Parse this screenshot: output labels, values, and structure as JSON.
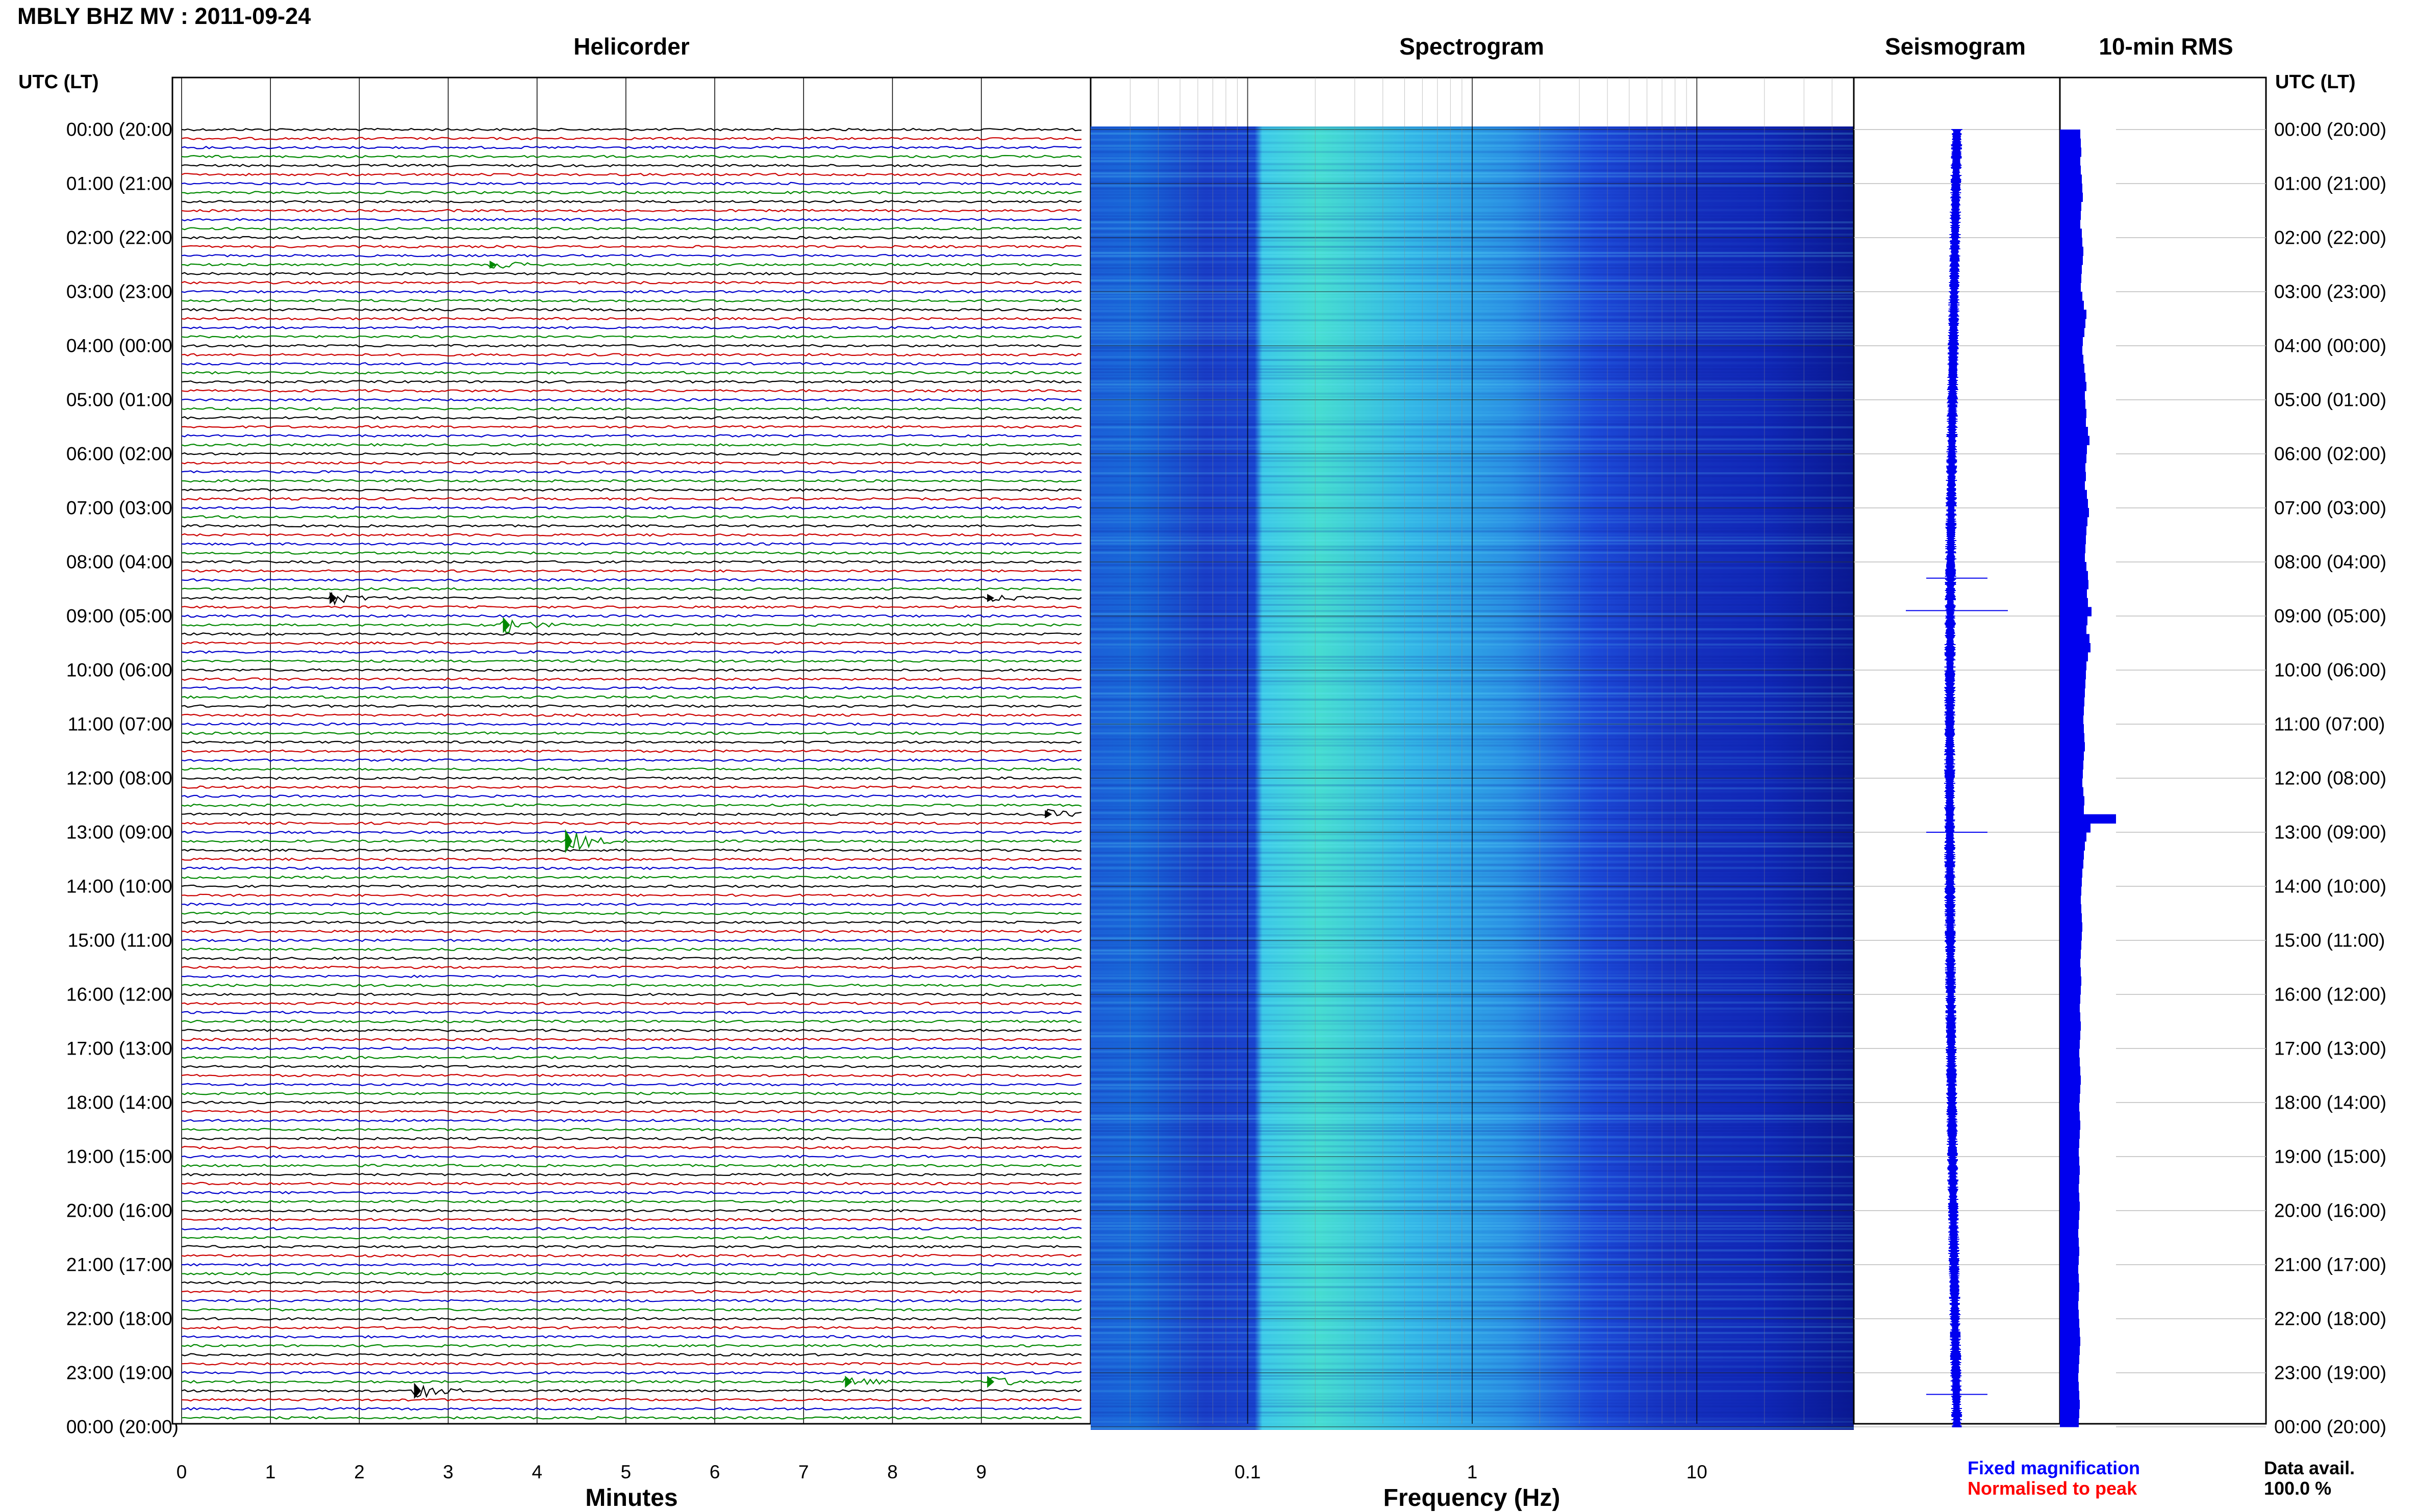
{
  "header": {
    "title": "MBLY BHZ MV : 2011-09-24"
  },
  "panels": {
    "helicorder": "Helicorder",
    "spectrogram": "Spectrogram",
    "seismogram": "Seismogram",
    "rms": "10-min RMS"
  },
  "axes": {
    "left_label": "UTC (LT)",
    "right_label": "UTC (LT)",
    "minutes_title": "Minutes",
    "frequency_title": "Frequency (Hz)",
    "minute_ticks": [
      "0",
      "1",
      "2",
      "3",
      "4",
      "5",
      "6",
      "7",
      "8",
      "9"
    ],
    "frequency_ticks": [
      "0.1",
      "1",
      "10"
    ]
  },
  "time_labels": [
    "00:00 (20:00)",
    "01:00 (21:00)",
    "02:00 (22:00)",
    "03:00 (23:00)",
    "04:00 (00:00)",
    "05:00 (01:00)",
    "06:00 (02:00)",
    "07:00 (03:00)",
    "08:00 (04:00)",
    "09:00 (05:00)",
    "10:00 (06:00)",
    "11:00 (07:00)",
    "12:00 (08:00)",
    "13:00 (09:00)",
    "14:00 (10:00)",
    "15:00 (11:00)",
    "16:00 (12:00)",
    "17:00 (13:00)",
    "18:00 (14:00)",
    "19:00 (15:00)",
    "20:00 (16:00)",
    "21:00 (17:00)",
    "22:00 (18:00)",
    "23:00 (19:00)",
    "00:00 (20:00)"
  ],
  "legend": {
    "fixed": "Fixed magnification",
    "normalised": "Normalised to peak",
    "avail_label": "Data avail.",
    "avail_value": "100.0 %"
  },
  "colors": {
    "trace_cycle": [
      "#000000",
      "#cc0000",
      "#0000cc",
      "#008800"
    ],
    "rms_bar": "#0000ee",
    "seismo": "#0000ee",
    "spectro_low": "#0a1a9a",
    "spectro_mid": "#1a8fe0",
    "spectro_high": "#4ce8c8"
  },
  "chart_data": [
    {
      "type": "line",
      "title": "Helicorder",
      "xlabel": "Minutes",
      "xlim": [
        0,
        10
      ],
      "rows": 144,
      "events": [
        {
          "row": 52,
          "minute": 1.7,
          "amp": 3
        },
        {
          "row": 52,
          "minute": 9.1,
          "amp": 2
        },
        {
          "row": 55,
          "minute": 3.65,
          "amp": 4
        },
        {
          "row": 79,
          "minute": 4.35,
          "amp": 6
        },
        {
          "row": 76,
          "minute": 9.75,
          "amp": 2
        },
        {
          "row": 15,
          "minute": 3.5,
          "amp": 2
        },
        {
          "row": 140,
          "minute": 2.65,
          "amp": 4
        },
        {
          "row": 139,
          "minute": 7.5,
          "amp": 3
        },
        {
          "row": 139,
          "minute": 9.1,
          "amp": 3
        }
      ]
    },
    {
      "type": "heatmap",
      "title": "Spectrogram",
      "xlabel": "Frequency (Hz)",
      "xscale": "log",
      "xlim": [
        0.02,
        50
      ],
      "peak_band_hz": [
        0.15,
        0.5
      ]
    },
    {
      "type": "line",
      "title": "Seismogram",
      "spikes_hour": [
        8.3,
        8.9,
        13.0,
        23.4
      ]
    },
    {
      "type": "bar",
      "title": "10-min RMS",
      "rms_values": [
        40,
        41,
        42,
        40,
        41,
        43,
        44,
        45,
        42,
        41,
        40,
        43,
        44,
        46,
        45,
        43,
        42,
        41,
        44,
        47,
        52,
        50,
        48,
        45,
        44,
        46,
        48,
        50,
        52,
        49,
        50,
        52,
        51,
        55,
        58,
        53,
        52,
        50,
        51,
        49,
        53,
        55,
        57,
        54,
        52,
        51,
        50,
        49,
        52,
        55,
        56,
        53,
        55,
        62,
        54,
        52,
        58,
        60,
        55,
        52,
        51,
        50,
        49,
        48,
        47,
        46,
        47,
        48,
        49,
        47,
        46,
        45,
        44,
        46,
        48,
        47,
        110,
        60,
        52,
        49,
        47,
        46,
        44,
        43,
        42,
        41,
        42,
        43,
        44,
        43,
        42,
        41,
        40,
        41,
        42,
        41,
        40,
        39,
        40,
        41,
        40,
        39,
        38,
        39,
        40,
        41,
        40,
        39,
        38,
        39,
        40,
        39,
        38,
        37,
        38,
        39,
        38,
        37,
        38,
        39,
        38,
        37,
        36,
        37,
        38,
        37,
        36,
        37,
        38,
        37,
        36,
        37,
        38,
        39,
        40,
        39,
        38,
        37,
        36,
        37,
        38,
        39,
        38,
        37
      ]
    }
  ]
}
